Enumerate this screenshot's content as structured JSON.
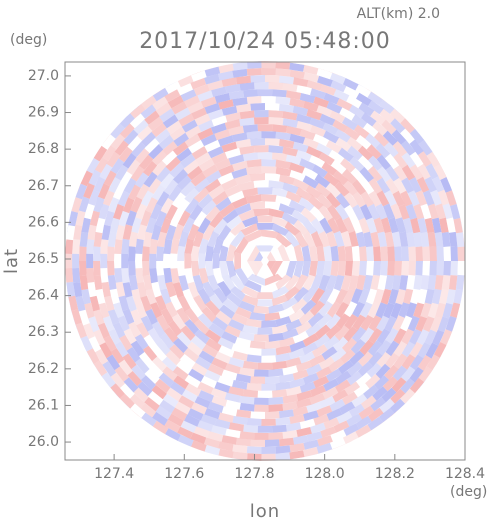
{
  "chart_data": {
    "type": "ppi",
    "title": "2017/10/24 05:48:00",
    "altitude_label": "ALT(km)  2.0",
    "y_unit": "(deg)",
    "x_unit": "(deg)",
    "xlabel": "lon",
    "ylabel": "lat",
    "xlim": [
      127.26,
      128.4
    ],
    "ylim": [
      25.951,
      27.038
    ],
    "xticks": [
      127.4,
      127.6,
      127.8,
      {
        "value": 128.0,
        "label": "128.0"
      },
      128.2,
      128.4
    ],
    "yticks": [
      {
        "value": 26.0,
        "label": "26.0"
      },
      26.1,
      26.2,
      26.3,
      26.4,
      26.5,
      26.6,
      26.7,
      26.8,
      26.9,
      {
        "value": 27.0,
        "label": "27.0"
      }
    ]
  }
}
